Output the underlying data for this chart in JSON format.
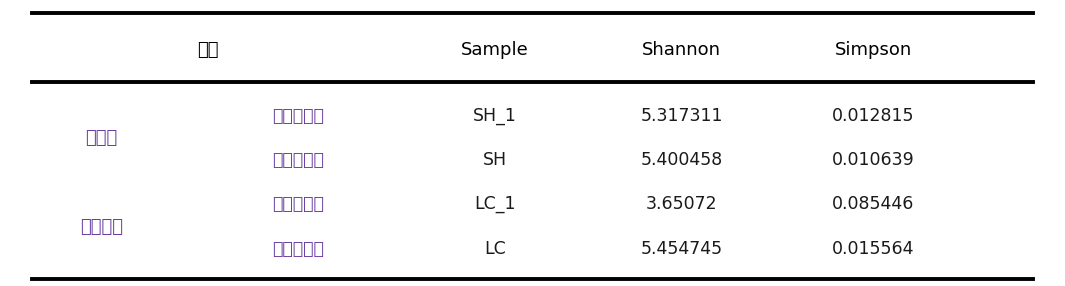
{
  "headers": [
    "样品",
    "",
    "Sample",
    "Shannon",
    "Simpson"
  ],
  "col1_groups": [
    "缺氧池",
    "深床滤池"
  ],
  "col2_labels": [
    "碳源投加前",
    "碳源投加后",
    "碳源投加前",
    "碳源投加后"
  ],
  "samples": [
    "SH_1",
    "SH",
    "LC_1",
    "LC"
  ],
  "shannon": [
    "5.317311",
    "5.400458",
    "3.65072",
    "5.454745"
  ],
  "simpson": [
    "0.012815",
    "0.010639",
    "0.085446",
    "0.015564"
  ],
  "bg_color": "#ffffff",
  "header_color": "#000000",
  "data_color": "#1a1a1a",
  "chinese_color": "#6b3fa0",
  "line_color": "#000000",
  "figsize": [
    10.65,
    2.86
  ],
  "dpi": 100,
  "header_fontsize": 13,
  "data_fontsize": 12.5,
  "chinese_fontsize": 13
}
